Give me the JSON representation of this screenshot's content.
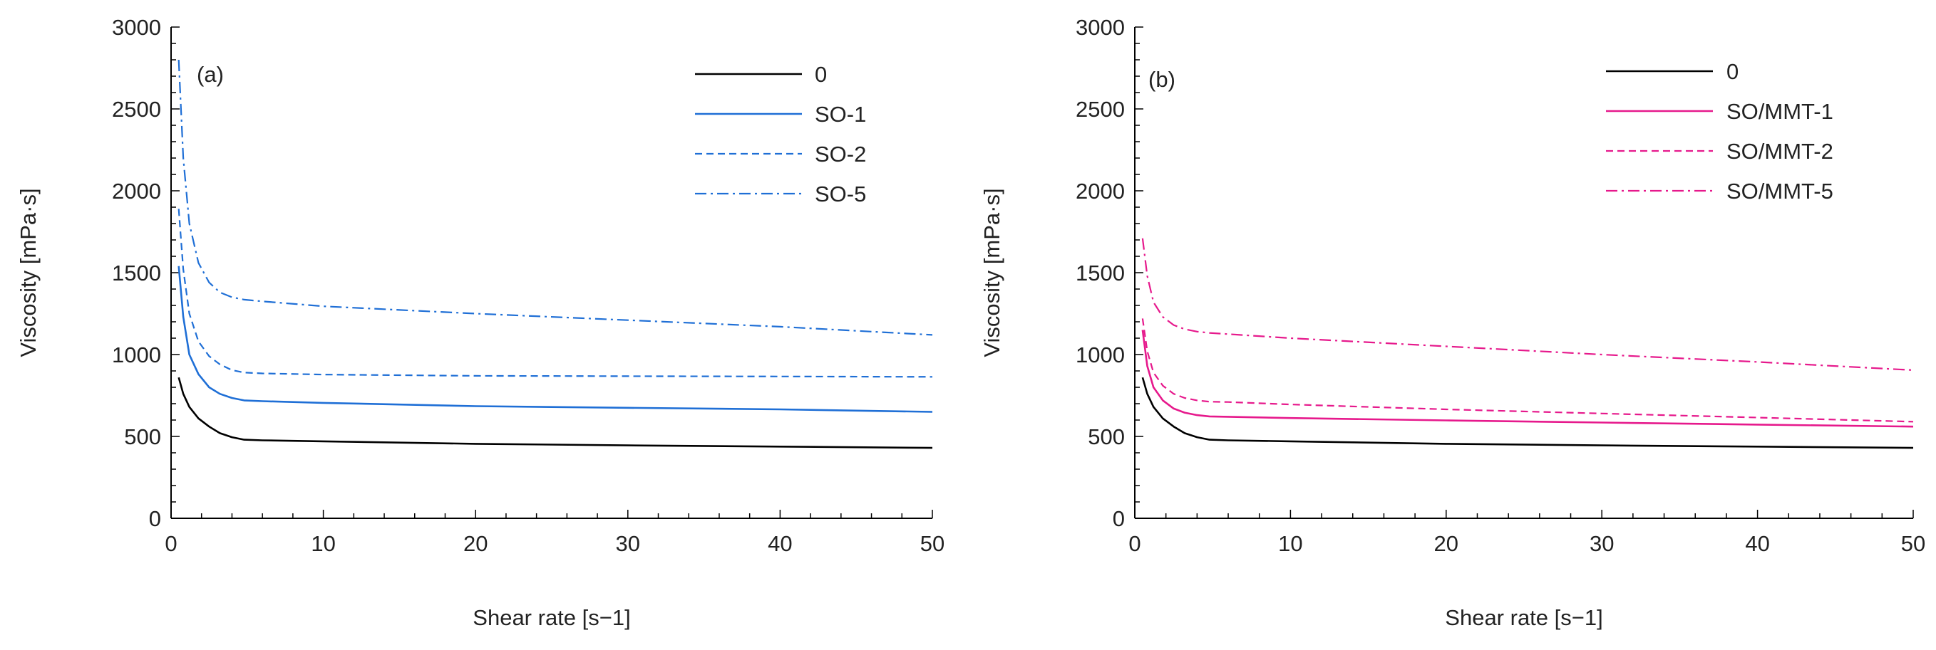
{
  "colors": {
    "axis": "#000000",
    "black": "#000000",
    "blue": "#1F6FD6",
    "pink": "#E6198C"
  },
  "chart_data": [
    {
      "type": "line",
      "panel_label": "(a)",
      "xlabel": "Shear rate [s−1]",
      "ylabel": "Viscosity [mPa·s]",
      "xlim": [
        0,
        50
      ],
      "ylim": [
        0,
        3000
      ],
      "xticks": [
        "0",
        "10",
        "20",
        "30",
        "40",
        "50"
      ],
      "yticks": [
        "0",
        "500",
        "1000",
        "1500",
        "2000",
        "2500",
        "3000"
      ],
      "grid": false,
      "legend_position": "top-right",
      "series": [
        {
          "name": "0",
          "color": "black",
          "dash": "solid",
          "x": [
            0.5,
            0.8,
            1.2,
            1.8,
            2.5,
            3.2,
            4.0,
            4.8,
            6,
            10,
            20,
            30,
            40,
            50
          ],
          "y": [
            860,
            760,
            680,
            610,
            560,
            520,
            495,
            480,
            476,
            470,
            455,
            445,
            438,
            430
          ]
        },
        {
          "name": "SO-1",
          "color": "blue",
          "dash": "solid",
          "x": [
            0.5,
            0.8,
            1.2,
            1.8,
            2.5,
            3.2,
            4.0,
            4.8,
            6,
            10,
            20,
            30,
            40,
            50
          ],
          "y": [
            1540,
            1230,
            1000,
            880,
            800,
            760,
            735,
            720,
            715,
            705,
            685,
            675,
            665,
            650
          ]
        },
        {
          "name": "SO-2",
          "color": "blue",
          "dash": "dashed",
          "x": [
            0.5,
            0.8,
            1.2,
            1.8,
            2.5,
            3.2,
            4.0,
            4.8,
            6,
            10,
            20,
            30,
            40,
            50
          ],
          "y": [
            1890,
            1520,
            1250,
            1080,
            990,
            940,
            905,
            890,
            885,
            878,
            870,
            868,
            866,
            864
          ]
        },
        {
          "name": "SO-5",
          "color": "blue",
          "dash": "dashdot",
          "x": [
            0.5,
            0.8,
            1.2,
            1.8,
            2.5,
            3.2,
            4.0,
            4.8,
            6,
            10,
            20,
            30,
            40,
            50
          ],
          "y": [
            2800,
            2200,
            1800,
            1560,
            1440,
            1380,
            1350,
            1335,
            1325,
            1295,
            1250,
            1210,
            1170,
            1120
          ]
        }
      ]
    },
    {
      "type": "line",
      "panel_label": "(b)",
      "xlabel": "Shear rate [s−1]",
      "ylabel": "Viscosity [mPa·s]",
      "xlim": [
        0,
        50
      ],
      "ylim": [
        0,
        3000
      ],
      "xticks": [
        "0",
        "10",
        "20",
        "30",
        "40",
        "50"
      ],
      "yticks": [
        "0",
        "500",
        "1000",
        "1500",
        "2000",
        "2500",
        "3000"
      ],
      "grid": false,
      "legend_position": "top-right",
      "series": [
        {
          "name": "0",
          "color": "black",
          "dash": "solid",
          "x": [
            0.5,
            0.8,
            1.2,
            1.8,
            2.5,
            3.2,
            4.0,
            4.8,
            6,
            10,
            20,
            30,
            40,
            50
          ],
          "y": [
            860,
            760,
            680,
            610,
            560,
            520,
            495,
            480,
            476,
            470,
            455,
            445,
            438,
            430
          ]
        },
        {
          "name": "SO/MMT-1",
          "color": "pink",
          "dash": "solid",
          "x": [
            0.5,
            0.8,
            1.2,
            1.8,
            2.5,
            3.2,
            4.0,
            4.8,
            6,
            10,
            20,
            30,
            40,
            50
          ],
          "y": [
            1150,
            930,
            800,
            720,
            670,
            645,
            630,
            622,
            620,
            612,
            598,
            585,
            572,
            560
          ]
        },
        {
          "name": "SO/MMT-2",
          "color": "pink",
          "dash": "dashed",
          "x": [
            0.5,
            0.8,
            1.2,
            1.8,
            2.5,
            3.2,
            4.0,
            4.8,
            6,
            10,
            20,
            30,
            40,
            50
          ],
          "y": [
            1220,
            1020,
            890,
            810,
            760,
            735,
            720,
            712,
            710,
            695,
            665,
            640,
            615,
            590
          ]
        },
        {
          "name": "SO/MMT-5",
          "color": "pink",
          "dash": "dashdot",
          "x": [
            0.5,
            0.8,
            1.2,
            1.8,
            2.5,
            3.2,
            4.0,
            4.8,
            6,
            10,
            20,
            30,
            40,
            50
          ],
          "y": [
            1710,
            1480,
            1320,
            1230,
            1180,
            1155,
            1140,
            1132,
            1125,
            1100,
            1050,
            1000,
            955,
            905
          ]
        }
      ]
    }
  ]
}
